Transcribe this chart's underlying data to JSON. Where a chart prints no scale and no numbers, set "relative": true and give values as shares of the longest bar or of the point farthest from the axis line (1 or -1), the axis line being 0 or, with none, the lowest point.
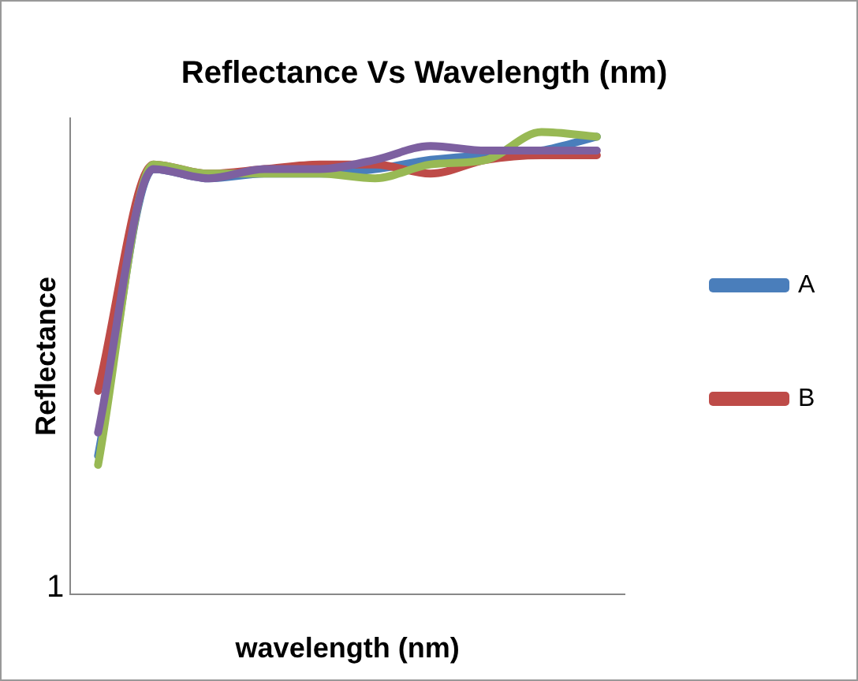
{
  "chart_data": {
    "type": "line",
    "title": "Reflectance Vs Wavelength (nm)",
    "xlabel": "wavelength (nm)",
    "ylabel": "Reflectance",
    "relative": true,
    "legend": "right",
    "grid": false,
    "marker": "none",
    "line_style": "solid",
    "annotations": [
      "1"
    ],
    "categories": [
      null,
      null,
      null,
      null,
      null,
      null,
      null,
      null,
      null,
      null
    ],
    "series": [
      {
        "name": "A",
        "color": "#4a7ebb",
        "values": [
          0.3,
          0.92,
          0.9,
          0.91,
          0.91,
          0.92,
          0.94,
          0.95,
          0.96,
          0.99
        ]
      },
      {
        "name": "B",
        "color": "#be4b48",
        "values": [
          0.44,
          0.93,
          0.91,
          0.92,
          0.93,
          0.93,
          0.91,
          0.94,
          0.95,
          0.95
        ]
      },
      {
        "color": "#98b954",
        "values": [
          0.28,
          0.93,
          0.91,
          0.91,
          0.91,
          0.9,
          0.93,
          0.94,
          1.0,
          0.99
        ]
      },
      {
        "color": "#7d60a0",
        "values": [
          0.35,
          0.92,
          0.9,
          0.92,
          0.92,
          0.94,
          0.97,
          0.96,
          0.96,
          0.96
        ]
      }
    ]
  }
}
